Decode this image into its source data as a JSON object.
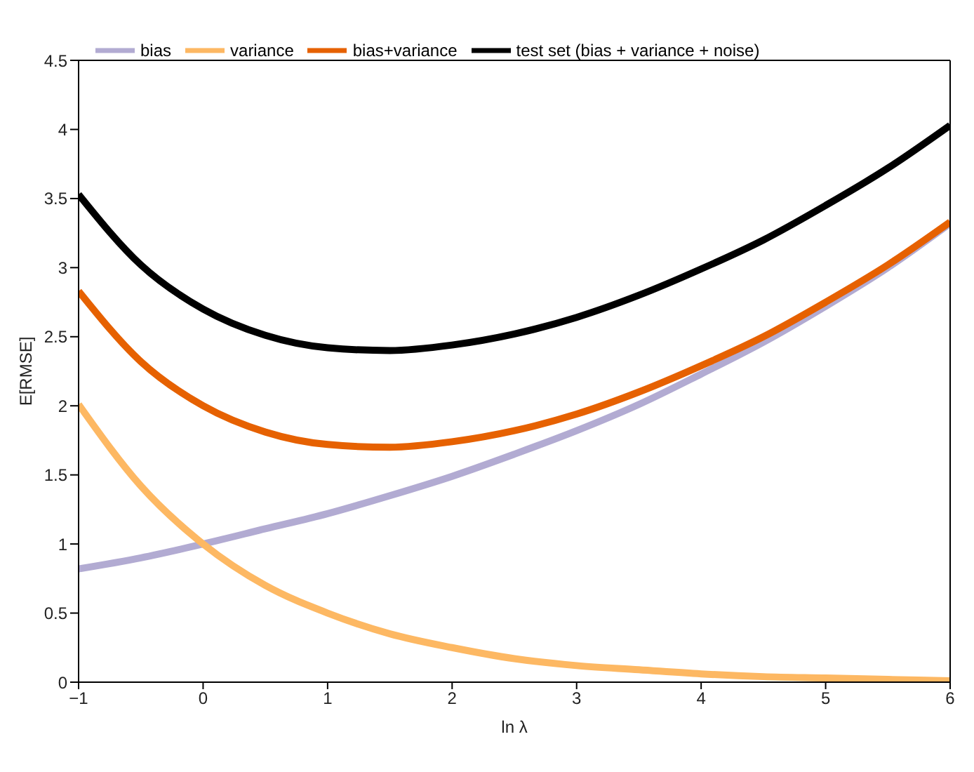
{
  "chart_data": {
    "type": "line",
    "xlabel": "ln λ",
    "ylabel": "E[RMSE]",
    "x": [
      -1,
      -0.5,
      0,
      0.5,
      1,
      1.5,
      2,
      2.5,
      3,
      3.5,
      4,
      4.5,
      5,
      5.5,
      6
    ],
    "series": [
      {
        "name": "bias",
        "color": "#b2abd2",
        "values": [
          0.82,
          0.9,
          1.0,
          1.11,
          1.22,
          1.35,
          1.49,
          1.65,
          1.82,
          2.01,
          2.23,
          2.46,
          2.72,
          3.0,
          3.32
        ]
      },
      {
        "name": "variance",
        "color": "#fdb863",
        "values": [
          2.01,
          1.42,
          1.0,
          0.7,
          0.5,
          0.35,
          0.25,
          0.17,
          0.12,
          0.09,
          0.06,
          0.04,
          0.03,
          0.02,
          0.01
        ]
      },
      {
        "name": "bias+variance",
        "color": "#e66101",
        "values": [
          2.83,
          2.32,
          2.0,
          1.81,
          1.72,
          1.7,
          1.74,
          1.82,
          1.94,
          2.1,
          2.29,
          2.5,
          2.75,
          3.02,
          3.33
        ]
      },
      {
        "name": "test set (bias + variance + noise)",
        "color": "#000000",
        "values": [
          3.53,
          3.02,
          2.7,
          2.51,
          2.42,
          2.4,
          2.44,
          2.52,
          2.64,
          2.8,
          2.99,
          3.2,
          3.45,
          3.72,
          4.03
        ]
      }
    ],
    "xlim": [
      -1,
      6
    ],
    "xticks": [
      -1,
      0,
      1,
      2,
      3,
      4,
      5,
      6
    ],
    "ylim": [
      0,
      4.5
    ],
    "yticks": [
      0,
      0.5,
      1,
      1.5,
      2,
      2.5,
      3,
      3.5,
      4,
      4.5
    ],
    "legend": "top",
    "grid": false,
    "marker": "none",
    "line_style": "solid"
  }
}
